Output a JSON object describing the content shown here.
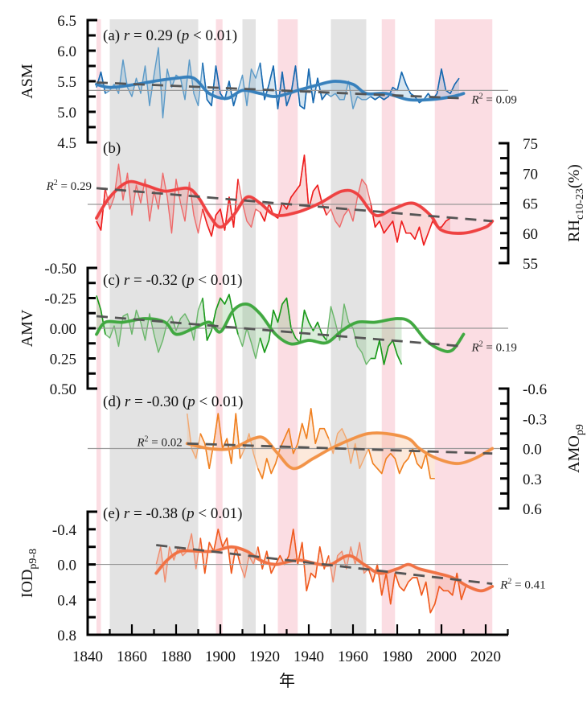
{
  "chart_data": {
    "type": "line",
    "xlabel": "年",
    "xlim": [
      1840,
      2030
    ],
    "x_ticks": [
      "1840",
      "1860",
      "1880",
      "1900",
      "1920",
      "1940",
      "1960",
      "1980",
      "2000",
      "2020"
    ],
    "bands": [
      {
        "type": "pink",
        "start": 1844,
        "end": 1846
      },
      {
        "type": "gray",
        "start": 1850,
        "end": 1890
      },
      {
        "type": "pink",
        "start": 1898,
        "end": 1901
      },
      {
        "type": "gray",
        "start": 1910,
        "end": 1916
      },
      {
        "type": "pink",
        "start": 1926,
        "end": 1935
      },
      {
        "type": "gray",
        "start": 1950,
        "end": 1966
      },
      {
        "type": "pink",
        "start": 1973,
        "end": 1979
      },
      {
        "type": "pink",
        "start": 1997,
        "end": 2023
      }
    ],
    "colors": {
      "pink_band": "#fbdde3",
      "gray_band": "#e3e3e3",
      "trend": "#555555",
      "ref_line": "#999999"
    },
    "panels": [
      {
        "id": "a",
        "label_prefix": "(a) ",
        "r_symbol": "r",
        "r_text": " = 0.29 (",
        "p_symbol": "p",
        "p_text": " < 0.01)",
        "ylabel": "ASM",
        "axis_side": "left",
        "ylim": [
          4.5,
          6.5
        ],
        "inverted": false,
        "y_ticks": [
          "6.5",
          "6.0",
          "5.5",
          "5.0",
          "4.5"
        ],
        "ref": 5.35,
        "r2": "R² = 0.09",
        "r2_value": 0.09,
        "r2_position": "right",
        "color_dark": "#1668b0",
        "color_light": "#5b9ac8",
        "trend": {
          "x": [
            1844,
            2010
          ],
          "y": [
            5.48,
            5.22
          ]
        },
        "smooth": {
          "x": [
            1844,
            1850,
            1860,
            1870,
            1880,
            1888,
            1895,
            1903,
            1910,
            1918,
            1925,
            1935,
            1945,
            1952,
            1960,
            1966,
            1975,
            1985,
            1995,
            2005,
            2010
          ],
          "y": [
            5.45,
            5.4,
            5.44,
            5.5,
            5.55,
            5.55,
            5.3,
            5.22,
            5.35,
            5.3,
            5.25,
            5.35,
            5.45,
            5.5,
            5.45,
            5.3,
            5.3,
            5.2,
            5.2,
            5.25,
            5.3
          ]
        },
        "raw": {
          "start": 1844,
          "step": 2,
          "y": [
            5.4,
            5.65,
            5.3,
            5.35,
            5.45,
            5.3,
            5.85,
            5.4,
            5.25,
            5.55,
            5.3,
            5.75,
            5.1,
            5.6,
            6.05,
            4.9,
            5.7,
            5.4,
            5.6,
            5.55,
            5.2,
            5.85,
            5.3,
            5.1,
            5.8,
            5.2,
            5.1,
            5.75,
            5.3,
            5.2,
            5.5,
            5.1,
            5.35,
            5.6,
            5.1,
            5.7,
            5.55,
            5.8,
            5.2,
            5.45,
            5.75,
            5.05,
            5.65,
            5.1,
            5.3,
            5.75,
            5.1,
            5.05,
            5.7,
            5.15,
            5.55,
            5.2,
            5.3,
            5.25,
            5.3,
            5.2,
            5.2,
            5.5,
            5.05,
            5.25,
            5.2,
            5.2,
            5.25,
            5.2,
            5.25,
            5.2,
            5.25,
            5.4,
            5.35,
            5.65,
            5.45,
            5.3,
            5.25,
            5.15,
            5.2,
            5.3,
            5.2,
            5.3,
            5.7,
            5.35,
            5.3,
            5.45,
            5.55
          ]
        }
      },
      {
        "id": "b",
        "label_prefix": "(b)",
        "r_symbol": "",
        "r_text": "",
        "p_symbol": "",
        "p_text": "",
        "ylabel": "RHc10-23(%)",
        "ylabel_main": "RH",
        "ylabel_sub": "c10-23",
        "ylabel_suffix": "(%)",
        "axis_side": "right",
        "ylim": [
          55,
          75
        ],
        "inverted": false,
        "y_ticks": [
          "75",
          "70",
          "65",
          "60",
          "55"
        ],
        "ref": 64.8,
        "r2": "R² = 0.29",
        "r2_value": 0.29,
        "r2_position": "left",
        "color_dark": "#ee1c1c",
        "color_light": "#ee6a6a",
        "trend": {
          "x": [
            1844,
            2023
          ],
          "y": [
            67.5,
            62.0
          ]
        },
        "smooth": {
          "x": [
            1844,
            1850,
            1858,
            1866,
            1875,
            1885,
            1890,
            1895,
            1900,
            1906,
            1912,
            1918,
            1925,
            1935,
            1945,
            1955,
            1962,
            1970,
            1978,
            1987,
            1995,
            2000,
            2010,
            2020,
            2023
          ],
          "y": [
            62.5,
            66,
            68.5,
            68,
            67,
            67.5,
            66,
            63,
            61,
            63,
            66,
            65,
            63,
            63.5,
            65,
            67,
            66.5,
            63,
            64,
            65,
            63,
            60.5,
            60,
            61,
            62
          ]
        },
        "raw": {
          "start": 1844,
          "step": 2,
          "y": [
            62,
            60.5,
            67.5,
            64,
            66,
            71.5,
            65.5,
            70,
            63,
            68,
            65,
            69,
            62,
            67,
            64,
            70,
            66,
            60,
            69,
            65,
            62,
            68.5,
            63,
            60,
            64,
            61.5,
            59.5,
            63,
            64,
            60.5,
            66,
            61,
            69,
            65,
            62,
            61,
            64,
            63.5,
            62,
            65,
            63,
            62.5,
            65,
            64,
            66,
            67,
            68,
            73,
            64,
            67,
            68,
            65,
            63,
            64,
            62,
            61,
            63,
            64,
            62,
            66,
            69,
            68,
            65,
            61,
            62,
            60,
            61,
            62,
            58.5,
            62,
            60,
            60,
            59,
            61,
            58,
            60,
            62,
            61,
            61,
            62,
            62.5
          ]
        }
      },
      {
        "id": "c",
        "label_prefix": "(c) ",
        "r_symbol": "r",
        "r_text": " = -0.32 (",
        "p_symbol": "p",
        "p_text": " < 0.01)",
        "ylabel": "AMV",
        "axis_side": "left",
        "ylim": [
          -0.5,
          0.5
        ],
        "inverted": true,
        "y_ticks": [
          "-0.50",
          "-0.25",
          "0.00",
          "0.25",
          "0.50"
        ],
        "ref": 0.0,
        "r2": "R² = 0.19",
        "r2_value": 0.19,
        "r2_position": "right",
        "color_dark": "#1a9a1a",
        "color_light": "#6ab66a",
        "trend": {
          "x": [
            1844,
            2010
          ],
          "y": [
            -0.1,
            0.15
          ]
        },
        "smooth": {
          "x": [
            1844,
            1848,
            1856,
            1866,
            1875,
            1880,
            1888,
            1895,
            1900,
            1906,
            1912,
            1918,
            1925,
            1932,
            1940,
            1948,
            1955,
            1962,
            1970,
            1980,
            1986,
            1993,
            2000,
            2005,
            2010
          ],
          "y": [
            0.05,
            -0.05,
            -0.05,
            -0.08,
            -0.05,
            0.05,
            0.0,
            -0.05,
            0.03,
            -0.15,
            -0.2,
            -0.12,
            0.05,
            0.13,
            0.1,
            0.12,
            0.02,
            -0.05,
            -0.05,
            -0.08,
            -0.05,
            0.1,
            0.18,
            0.18,
            0.05
          ]
        },
        "raw": {
          "start": 1844,
          "step": 2,
          "y": [
            -0.27,
            -0.15,
            0.05,
            0.08,
            -0.02,
            0.15,
            -0.1,
            -0.12,
            0.05,
            -0.15,
            -0.05,
            0.1,
            -0.12,
            0.05,
            0.2,
            0.1,
            -0.05,
            -0.1,
            0.02,
            -0.08,
            -0.12,
            -0.05,
            0.1,
            -0.15,
            -0.25,
            0.1,
            0.02,
            -0.15,
            -0.25,
            -0.2,
            -0.28,
            -0.1,
            0.05,
            0.15,
            0.0,
            0.12,
            0.25,
            0.08,
            0.2,
            0.1,
            -0.15,
            -0.05,
            -0.2,
            -0.25,
            0.0,
            0.08,
            0.12,
            -0.15,
            -0.05,
            0.02,
            -0.05,
            0.05,
            0.1,
            -0.18,
            -0.05,
            0.1,
            -0.2,
            -0.05,
            0.0,
            0.15,
            0.2,
            0.3,
            0.25,
            0.25,
            0.1,
            0.3,
            0.15,
            0.1,
            0.22,
            0.3
          ]
        }
      },
      {
        "id": "d",
        "label_prefix": "(d) ",
        "r_symbol": "r",
        "r_text": " = -0.30 (",
        "p_symbol": "p",
        "p_text": " < 0.01)",
        "ylabel": "AMOp9",
        "ylabel_main": "AMO",
        "ylabel_sub": "p9",
        "ylabel_suffix": "",
        "axis_side": "right",
        "ylim": [
          -0.6,
          0.6
        ],
        "inverted": true,
        "y_ticks": [
          "-0.6",
          "-0.3",
          "0.0",
          "0.3",
          "0.6"
        ],
        "ref": 0.0,
        "r2": "R² = 0.02",
        "r2_value": 0.02,
        "r2_position": "left",
        "color_dark": "#f08020",
        "color_light": "#f2a870",
        "trend": {
          "x": [
            1885,
            2023
          ],
          "y": [
            -0.05,
            0.05
          ]
        },
        "smooth": {
          "x": [
            1885,
            1895,
            1905,
            1915,
            1920,
            1926,
            1933,
            1942,
            1950,
            1960,
            1967,
            1975,
            1985,
            1990,
            1998,
            2007,
            2015,
            2023
          ],
          "y": [
            -0.05,
            0.0,
            0.0,
            -0.1,
            -0.1,
            0.05,
            0.2,
            0.1,
            0.0,
            -0.1,
            -0.15,
            -0.15,
            -0.1,
            0.0,
            0.1,
            0.15,
            0.1,
            0.0
          ]
        },
        "raw": {
          "start": 1885,
          "step": 2,
          "y": [
            -0.35,
            0.0,
            0.1,
            -0.15,
            -0.05,
            0.2,
            -0.05,
            -0.35,
            0.0,
            -0.1,
            0.15,
            -0.35,
            0.1,
            0.0,
            -0.15,
            0.05,
            0.2,
            0.3,
            0.1,
            0.25,
            0.15,
            0.0,
            -0.1,
            -0.2,
            0.05,
            -0.05,
            -0.25,
            -0.1,
            -0.4,
            -0.05,
            -0.2,
            -0.2,
            -0.1,
            0.05,
            -0.15,
            -0.2,
            -0.1,
            0.15,
            -0.05,
            0.2,
            0.1,
            0.0,
            0.15,
            0.2,
            0.25,
            0.1,
            0.05,
            0.1,
            0.25,
            0.15,
            0.1,
            0.0,
            0.15,
            0.2,
            0.05,
            0.3,
            0.3
          ]
        }
      },
      {
        "id": "e",
        "label_prefix": "(e) ",
        "r_symbol": "r",
        "r_text": " = -0.38 (",
        "p_symbol": "p",
        "p_text": " < 0.01)",
        "ylabel": "IODp9-8",
        "ylabel_main": "IOD",
        "ylabel_sub": "p9-8",
        "ylabel_suffix": "",
        "axis_side": "left",
        "ylim": [
          -0.6,
          0.8
        ],
        "inverted": true,
        "y_ticks": [
          "-0.4",
          "0.0",
          "0.4",
          "0.8"
        ],
        "ref": 0.0,
        "r2": "R² = 0.41",
        "r2_value": 0.41,
        "r2_position": "right",
        "color_dark": "#f05a1e",
        "color_light": "#f08c6e",
        "trend": {
          "x": [
            1871,
            2023
          ],
          "y": [
            -0.22,
            0.22
          ]
        },
        "smooth": {
          "x": [
            1871,
            1876,
            1882,
            1890,
            1897,
            1905,
            1912,
            1918,
            1925,
            1935,
            1945,
            1950,
            1958,
            1965,
            1972,
            1980,
            1985,
            1990,
            1998,
            2005,
            2012,
            2018,
            2023
          ],
          "y": [
            0.1,
            -0.05,
            -0.15,
            -0.15,
            -0.15,
            -0.2,
            -0.15,
            -0.05,
            0.0,
            -0.05,
            0.0,
            0.0,
            -0.1,
            0.0,
            0.1,
            0.05,
            0.0,
            0.05,
            0.1,
            0.15,
            0.25,
            0.3,
            0.25
          ]
        },
        "raw": {
          "start": 1871,
          "step": 2,
          "y": [
            0.0,
            -0.2,
            0.2,
            -0.2,
            -0.05,
            -0.2,
            -0.1,
            -0.15,
            -0.35,
            0.05,
            -0.3,
            0.1,
            -0.25,
            -0.15,
            -0.4,
            -0.2,
            -0.3,
            0.1,
            -0.2,
            0.0,
            0.15,
            -0.1,
            0.0,
            -0.2,
            0.05,
            -0.15,
            0.1,
            0.0,
            -0.1,
            0.0,
            -0.1,
            -0.4,
            0.0,
            -0.25,
            0.3,
            0.1,
            0.15,
            -0.2,
            0.05,
            -0.1,
            0.2,
            -0.1,
            -0.15,
            0.05,
            -0.2,
            0.0,
            -0.25,
            0.1,
            0.05,
            0.2,
            0.0,
            0.35,
            0.1,
            0.45,
            0.1,
            0.25,
            0.3,
            0.2,
            0.15,
            0.15,
            0.35,
            0.2,
            0.55,
            0.45,
            0.25,
            0.3,
            0.3,
            0.35,
            0.1,
            0.4,
            0.25
          ]
        }
      }
    ]
  }
}
